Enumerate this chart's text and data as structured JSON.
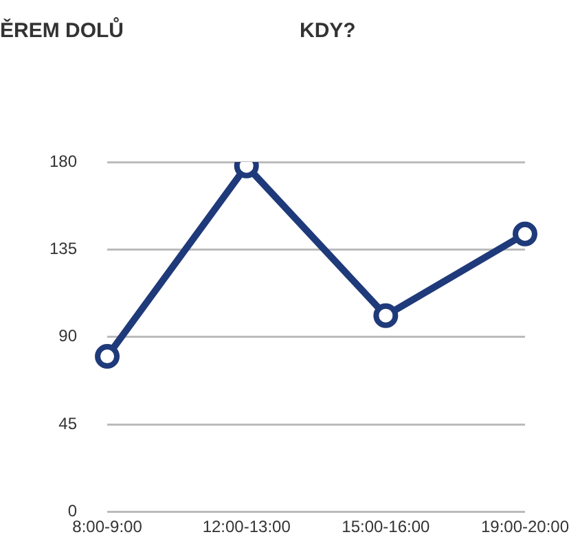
{
  "chart_data": {
    "type": "line",
    "title": "KDY?",
    "annotations": [
      "ĚREM DOLŮ"
    ],
    "categories": [
      "8:00-9:00",
      "12:00-13:00",
      "15:00-16:00",
      "19:00-20:00"
    ],
    "series": [
      {
        "color": "#1f3a7a",
        "values": [
          80,
          178,
          101,
          143
        ]
      }
    ],
    "ylim": [
      0,
      180
    ],
    "yticks": [
      0,
      45,
      90,
      135,
      180
    ],
    "grid": "y",
    "marker": "circle",
    "line_style": "solid",
    "legend": false
  }
}
